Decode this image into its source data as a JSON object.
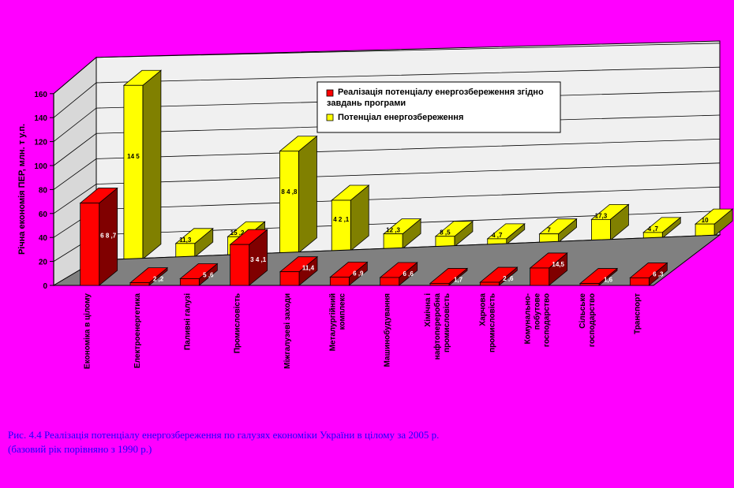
{
  "colors": {
    "background": "#FF00FF",
    "plot_wall": "#F0F0F0",
    "floor": "#808080",
    "red": "#FF0000",
    "yellow": "#FFFF00"
  },
  "caption": {
    "line1": "Рис. 4.4 Реалізація потенціалу енергозбереження по галузях економіки України в цілому за 2005 р.",
    "line2": "(базовий рік порівняно з 1990 р.)"
  },
  "chart_data": {
    "type": "bar",
    "ylabel": "Річна економія ПЕР, млн. т у.п.",
    "ylim": [
      0,
      160
    ],
    "yticks": [
      0,
      20,
      40,
      60,
      80,
      100,
      120,
      140,
      160
    ],
    "grid": true,
    "three_d": true,
    "legend_position": "top-right",
    "categories": [
      "Економіка в цілому",
      "Електроенергетика",
      "Паливні галузі",
      "Промисловість",
      "Міжгалузеві заходи",
      "Металургійний комплекс",
      "Машинобудування",
      "Хімічна і нафтопереробна промисловість",
      "Харчова промисловість",
      "Комунально-побутове господарство",
      "Сільське господарство",
      "Транспорт"
    ],
    "series": [
      {
        "name": "Реалізація потенціалу енергозбереження згідно завдань програми",
        "color": "#FF0000",
        "values": [
          68.7,
          2.2,
          5.6,
          34.1,
          11.4,
          6.9,
          6.6,
          1.7,
          2.6,
          14.5,
          1.6,
          6.3
        ],
        "labels": [
          "6 8 ,7",
          "2 ,2",
          "5 ,6",
          "3 4 ,1",
          "11,4",
          "6 ,9",
          "6 ,6",
          "1,7",
          "2 ,6",
          "14,5",
          "1,6",
          "6 ,3"
        ]
      },
      {
        "name": "Потенціал енергозбереження",
        "color": "#FFFF00",
        "values": [
          145,
          11.3,
          15.2,
          84.8,
          42.1,
          12.3,
          8.5,
          4.7,
          7,
          17.3,
          4.7,
          10
        ],
        "labels": [
          "14 5",
          "11,3",
          "15 ,2",
          "8 4 ,8",
          "4 2 ,1",
          "12 ,3",
          "8 ,5",
          "4 ,7",
          "7",
          "17,3",
          "4 ,7",
          "10"
        ]
      }
    ]
  }
}
